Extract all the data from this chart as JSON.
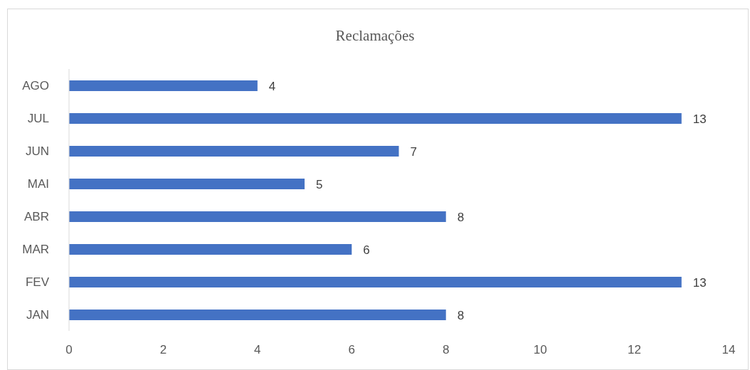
{
  "chart_data": {
    "type": "bar",
    "orientation": "horizontal",
    "title": "Reclamações",
    "categories": [
      "AGO",
      "JUL",
      "JUN",
      "MAI",
      "ABR",
      "MAR",
      "FEV",
      "JAN"
    ],
    "values": [
      4,
      13,
      7,
      5,
      8,
      6,
      13,
      8
    ],
    "color": "#4472c4",
    "xlim": [
      0,
      14
    ],
    "xticks": [
      0,
      2,
      4,
      6,
      8,
      10,
      12,
      14
    ],
    "grid": false,
    "data_labels": true
  }
}
